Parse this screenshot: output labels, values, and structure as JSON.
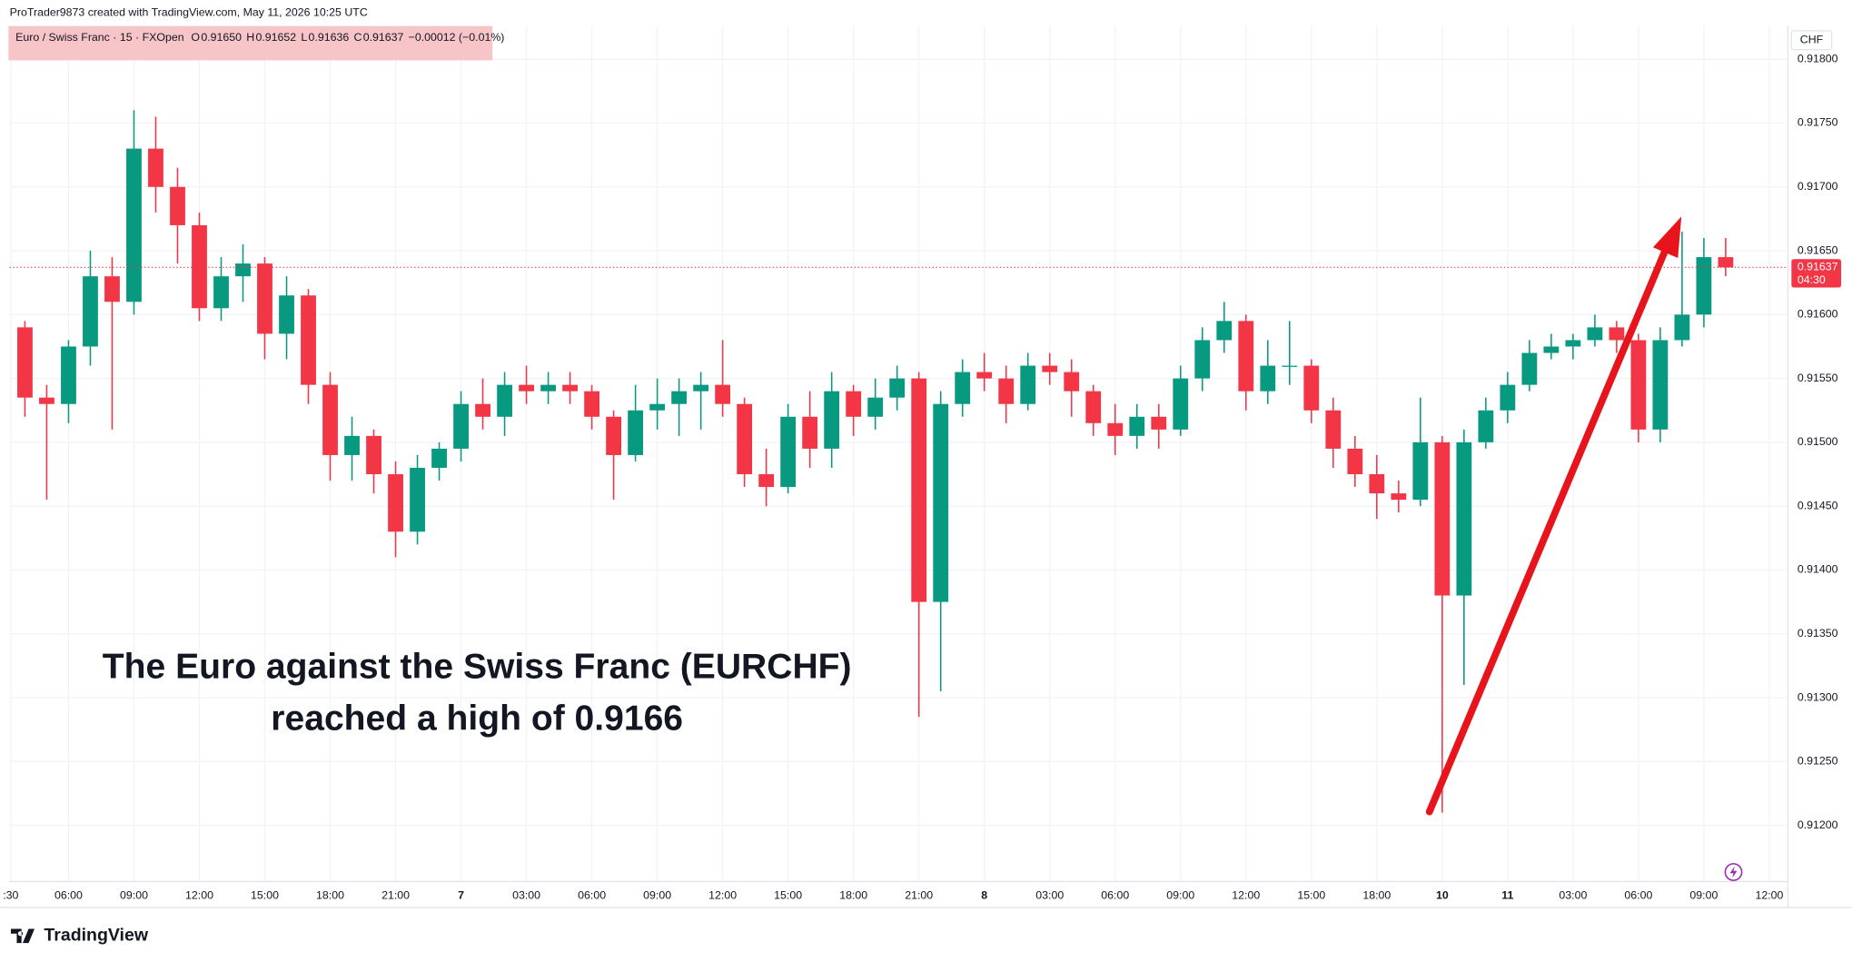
{
  "header": {
    "byline": "ProTrader9873 created with TradingView.com, May 11, 2026 10:25 UTC",
    "symbol": "Euro / Swiss Franc · 15 · FXOpen",
    "ohlc": [
      {
        "key": "O",
        "value": "0.91650"
      },
      {
        "key": "H",
        "value": "0.91652"
      },
      {
        "key": "L",
        "value": "0.91636"
      },
      {
        "key": "C",
        "value": "0.91637"
      }
    ],
    "change": "−0.00012 (−0.01%)"
  },
  "chart_data": {
    "type": "candlestick",
    "annotation": [
      "The Euro against the Swiss Franc (EURCHF)",
      "reached a high of 0.9166"
    ],
    "currency": "CHF",
    "countdown": "04:30",
    "last_price": 0.91637,
    "up_color": "#089981",
    "down_color": "#f23645",
    "grid": true,
    "x": [
      4,
      5,
      6,
      7,
      8,
      9,
      10,
      11,
      12,
      13,
      14,
      15,
      16,
      17,
      18,
      19,
      20,
      21,
      22,
      23,
      24,
      25,
      26,
      27,
      28,
      29,
      30,
      31,
      32,
      33,
      34,
      35,
      36,
      37,
      38,
      39,
      40,
      41,
      42,
      43,
      44,
      45,
      46,
      47,
      48,
      49,
      50,
      51,
      52,
      53,
      54,
      55,
      56,
      57,
      58,
      59,
      60,
      61,
      62,
      63,
      64,
      65,
      66,
      67,
      68,
      69,
      70,
      71,
      72,
      73,
      74,
      75,
      76,
      77,
      78,
      79,
      80,
      81,
      82
    ],
    "open": [
      0.9159,
      0.91535,
      0.9153,
      0.91575,
      0.9163,
      0.9161,
      0.9173,
      0.917,
      0.9167,
      0.91605,
      0.9163,
      0.9164,
      0.91585,
      0.91615,
      0.91545,
      0.9149,
      0.91505,
      0.91475,
      0.9143,
      0.9148,
      0.91495,
      0.9153,
      0.9152,
      0.91545,
      0.9154,
      0.91545,
      0.9154,
      0.9152,
      0.9149,
      0.91525,
      0.9153,
      0.9154,
      0.91545,
      0.9153,
      0.91475,
      0.91465,
      0.9152,
      0.91495,
      0.9154,
      0.9152,
      0.91535,
      0.9155,
      0.91375,
      0.9153,
      0.91555,
      0.9155,
      0.9153,
      0.9156,
      0.91555,
      0.9154,
      0.91515,
      0.91505,
      0.9152,
      0.9151,
      0.9155,
      0.9158,
      0.91595,
      0.9154,
      0.9156,
      0.9156,
      0.91525,
      0.91495,
      0.91475,
      0.9146,
      0.91455,
      0.915,
      0.9138,
      0.915,
      0.91525,
      0.91545,
      0.9157,
      0.91575,
      0.9158,
      0.9159,
      0.9158,
      0.9151,
      0.9158,
      0.916,
      0.91645
    ],
    "high": [
      0.91595,
      0.91545,
      0.9158,
      0.9165,
      0.91645,
      0.9176,
      0.91755,
      0.91715,
      0.9168,
      0.91645,
      0.91655,
      0.91645,
      0.9163,
      0.9162,
      0.91555,
      0.9152,
      0.9151,
      0.91485,
      0.9149,
      0.915,
      0.9154,
      0.9155,
      0.91555,
      0.9156,
      0.91555,
      0.91555,
      0.91545,
      0.91525,
      0.91545,
      0.9155,
      0.9155,
      0.91555,
      0.9158,
      0.91535,
      0.91495,
      0.9153,
      0.9154,
      0.91555,
      0.91545,
      0.9155,
      0.9156,
      0.91555,
      0.9154,
      0.91565,
      0.9157,
      0.9156,
      0.9157,
      0.9157,
      0.91565,
      0.91545,
      0.9153,
      0.9153,
      0.9153,
      0.9156,
      0.9159,
      0.9161,
      0.916,
      0.9158,
      0.91595,
      0.91565,
      0.91535,
      0.91505,
      0.9149,
      0.9147,
      0.91535,
      0.91505,
      0.9151,
      0.91535,
      0.91555,
      0.9158,
      0.91585,
      0.91585,
      0.916,
      0.91595,
      0.91585,
      0.9159,
      0.91665,
      0.9166,
      0.9166
    ],
    "low": [
      0.9152,
      0.91455,
      0.91515,
      0.9156,
      0.9151,
      0.916,
      0.9168,
      0.9164,
      0.91595,
      0.91595,
      0.9161,
      0.91565,
      0.91565,
      0.9153,
      0.9147,
      0.9147,
      0.9146,
      0.9141,
      0.9142,
      0.9147,
      0.91485,
      0.9151,
      0.91505,
      0.9153,
      0.9153,
      0.9153,
      0.9151,
      0.91455,
      0.91485,
      0.9151,
      0.91505,
      0.9151,
      0.9152,
      0.91465,
      0.9145,
      0.9146,
      0.9148,
      0.9148,
      0.91505,
      0.9151,
      0.91525,
      0.91285,
      0.91305,
      0.9152,
      0.9154,
      0.91515,
      0.91525,
      0.91545,
      0.9152,
      0.91505,
      0.9149,
      0.91495,
      0.91495,
      0.91505,
      0.9154,
      0.9157,
      0.91525,
      0.9153,
      0.91545,
      0.91515,
      0.9148,
      0.91465,
      0.9144,
      0.91445,
      0.9145,
      0.9121,
      0.9131,
      0.91495,
      0.91515,
      0.9154,
      0.91565,
      0.91565,
      0.91575,
      0.9157,
      0.915,
      0.915,
      0.91575,
      0.9159,
      0.9163
    ],
    "close": [
      0.91535,
      0.9153,
      0.91575,
      0.9163,
      0.9161,
      0.9173,
      0.917,
      0.9167,
      0.91605,
      0.9163,
      0.9164,
      0.91585,
      0.91615,
      0.91545,
      0.9149,
      0.91505,
      0.91475,
      0.9143,
      0.9148,
      0.91495,
      0.9153,
      0.9152,
      0.91545,
      0.9154,
      0.91545,
      0.9154,
      0.9152,
      0.9149,
      0.91525,
      0.9153,
      0.9154,
      0.91545,
      0.9153,
      0.91475,
      0.91465,
      0.9152,
      0.91495,
      0.9154,
      0.9152,
      0.91535,
      0.9155,
      0.91375,
      0.9153,
      0.91555,
      0.9155,
      0.9153,
      0.9156,
      0.91555,
      0.9154,
      0.91515,
      0.91505,
      0.9152,
      0.9151,
      0.9155,
      0.9158,
      0.91595,
      0.9154,
      0.9156,
      0.9156,
      0.91525,
      0.91495,
      0.91475,
      0.9146,
      0.91455,
      0.915,
      0.9138,
      0.915,
      0.91525,
      0.91545,
      0.9157,
      0.91575,
      0.9158,
      0.9159,
      0.9158,
      0.9151,
      0.9158,
      0.916,
      0.91645,
      0.91637
    ],
    "xlim": [
      3.3,
      84.8
    ],
    "xticks": [
      {
        "value": 3.35,
        "label": ":30"
      },
      {
        "value": 6,
        "label": "06:00"
      },
      {
        "value": 9,
        "label": "09:00"
      },
      {
        "value": 12,
        "label": "12:00"
      },
      {
        "value": 15,
        "label": "15:00"
      },
      {
        "value": 18,
        "label": "18:00"
      },
      {
        "value": 21,
        "label": "21:00"
      },
      {
        "value": 24,
        "label": "7"
      },
      {
        "value": 27,
        "label": "03:00"
      },
      {
        "value": 30,
        "label": "06:00"
      },
      {
        "value": 33,
        "label": "09:00"
      },
      {
        "value": 36,
        "label": "12:00"
      },
      {
        "value": 39,
        "label": "15:00"
      },
      {
        "value": 42,
        "label": "18:00"
      },
      {
        "value": 45,
        "label": "21:00"
      },
      {
        "value": 48,
        "label": "8"
      },
      {
        "value": 51,
        "label": "03:00"
      },
      {
        "value": 54,
        "label": "06:00"
      },
      {
        "value": 57,
        "label": "09:00"
      },
      {
        "value": 60,
        "label": "12:00"
      },
      {
        "value": 63,
        "label": "15:00"
      },
      {
        "value": 66,
        "label": "18:00"
      },
      {
        "value": 69,
        "label": "10"
      },
      {
        "value": 72,
        "label": "11"
      },
      {
        "value": 75,
        "label": "03:00"
      },
      {
        "value": 78,
        "label": "06:00"
      },
      {
        "value": 81,
        "label": "09:00"
      },
      {
        "value": 84,
        "label": "12:00"
      }
    ],
    "ylim": [
      0.91156,
      0.91826
    ],
    "yticks": [
      {
        "value": 0.912,
        "label": "0.91200"
      },
      {
        "value": 0.9125,
        "label": "0.91250"
      },
      {
        "value": 0.913,
        "label": "0.91300"
      },
      {
        "value": 0.9135,
        "label": "0.91350"
      },
      {
        "value": 0.914,
        "label": "0.91400"
      },
      {
        "value": 0.9145,
        "label": "0.91450"
      },
      {
        "value": 0.915,
        "label": "0.91500"
      },
      {
        "value": 0.9155,
        "label": "0.91550"
      },
      {
        "value": 0.916,
        "label": "0.91600"
      },
      {
        "value": 0.9165,
        "label": "0.91650"
      },
      {
        "value": 0.917,
        "label": "0.91700"
      },
      {
        "value": 0.9175,
        "label": "0.91750"
      },
      {
        "value": 0.918,
        "label": "0.91800"
      }
    ]
  },
  "footer": {
    "logo": "TradingView"
  }
}
